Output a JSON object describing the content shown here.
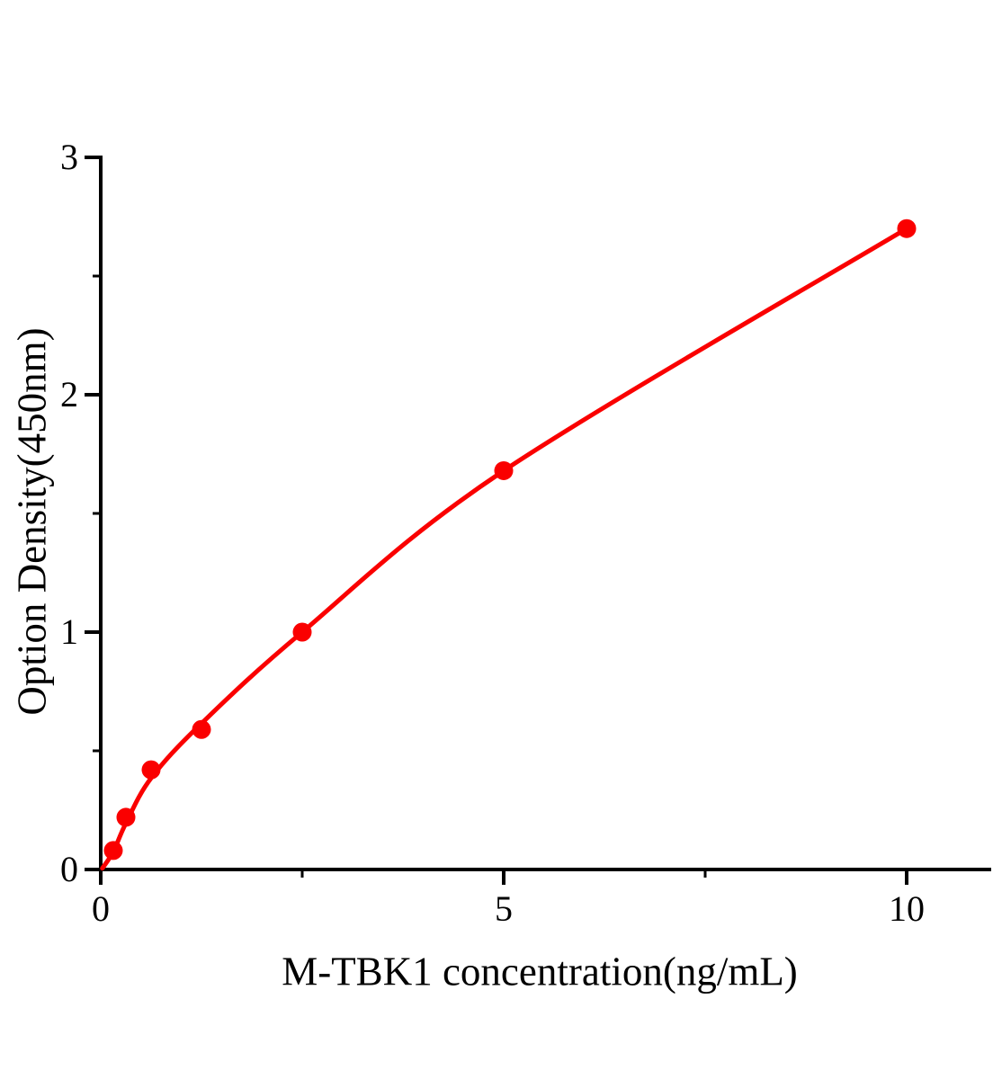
{
  "chart_data": {
    "type": "scatter",
    "title": "",
    "xlabel": "M-TBK1 concentration(ng/mL)",
    "ylabel": "Option Density(450nm)",
    "series": [
      {
        "name": "standard-curve-points",
        "x": [
          0.156,
          0.3125,
          0.625,
          1.25,
          2.5,
          5,
          10
        ],
        "y": [
          0.08,
          0.22,
          0.42,
          0.59,
          1.0,
          1.68,
          2.7
        ]
      }
    ],
    "fit_curve": {
      "name": "fitted-curve",
      "anchors_x": [
        0.02,
        0.156,
        0.3125,
        0.625,
        1.25,
        2.5,
        5,
        10
      ],
      "anchors_y": [
        0.005,
        0.075,
        0.195,
        0.385,
        0.615,
        1.0,
        1.68,
        2.7
      ]
    },
    "xlim": [
      0,
      11.03
    ],
    "ylim": [
      0,
      3
    ],
    "x_axis": {
      "major_ticks": [
        0,
        5,
        10
      ],
      "major_labels": [
        "0",
        "5",
        "10"
      ],
      "minor_ticks": [
        2.5,
        7.5
      ]
    },
    "y_axis": {
      "major_ticks": [
        0,
        1,
        2,
        3
      ],
      "major_labels": [
        "0",
        "1",
        "2",
        "3"
      ],
      "minor_ticks": [
        0.5,
        1.5,
        2.5
      ]
    },
    "grid": false,
    "legend": false,
    "colors": {
      "marker": "#fa0000",
      "curve": "#fa0000",
      "axis": "#000000",
      "text": "#000000",
      "background": "#ffffff"
    },
    "marker_radius": 10.5
  }
}
